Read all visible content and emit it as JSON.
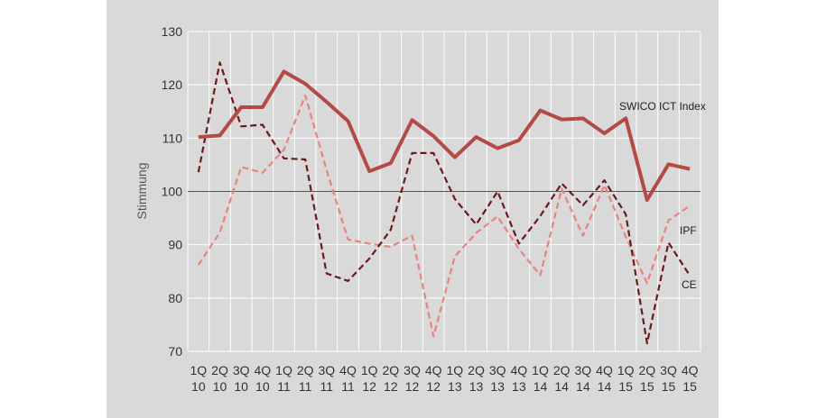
{
  "chart_data": {
    "type": "line",
    "title": "",
    "xlabel": "",
    "ylabel": "Stimmung",
    "ylim": [
      70,
      130
    ],
    "yticks": [
      70,
      80,
      90,
      100,
      110,
      120,
      130
    ],
    "reference_line": 100,
    "categories": [
      "1Q 10",
      "2Q 10",
      "3Q 10",
      "4Q 10",
      "1Q 11",
      "2Q 11",
      "3Q 11",
      "4Q 11",
      "1Q 12",
      "2Q 12",
      "3Q 12",
      "4Q 12",
      "1Q 13",
      "2Q 13",
      "3Q 13",
      "4Q 13",
      "1Q 14",
      "2Q 14",
      "3Q 14",
      "4Q 14",
      "1Q 15",
      "2Q 15",
      "3Q 15",
      "4Q 15"
    ],
    "category_lines": [
      [
        "1Q",
        "10"
      ],
      [
        "2Q",
        "10"
      ],
      [
        "3Q",
        "10"
      ],
      [
        "4Q",
        "10"
      ],
      [
        "1Q",
        "11"
      ],
      [
        "2Q",
        "11"
      ],
      [
        "3Q",
        "11"
      ],
      [
        "4Q",
        "11"
      ],
      [
        "1Q",
        "12"
      ],
      [
        "2Q",
        "12"
      ],
      [
        "3Q",
        "12"
      ],
      [
        "4Q",
        "12"
      ],
      [
        "1Q",
        "13"
      ],
      [
        "2Q",
        "13"
      ],
      [
        "3Q",
        "13"
      ],
      [
        "4Q",
        "13"
      ],
      [
        "1Q",
        "14"
      ],
      [
        "2Q",
        "14"
      ],
      [
        "3Q",
        "14"
      ],
      [
        "4Q",
        "14"
      ],
      [
        "1Q",
        "15"
      ],
      [
        "2Q",
        "15"
      ],
      [
        "3Q",
        "15"
      ],
      [
        "4Q",
        "15"
      ]
    ],
    "grid": true,
    "series": [
      {
        "name": "SWICO ICT Index",
        "color": "#b34a46",
        "style": "solid",
        "values": [
          110.2,
          110.5,
          115.8,
          115.8,
          122.5,
          120.2,
          116.8,
          113.2,
          103.8,
          105.3,
          113.4,
          110.4,
          106.4,
          110.2,
          108.1,
          109.6,
          115.2,
          113.5,
          113.7,
          110.9,
          113.7,
          98.4,
          105.1,
          104.2
        ]
      },
      {
        "name": "IPF",
        "color": "#e8847e",
        "style": "dashed",
        "values": [
          86.2,
          92.3,
          104.6,
          103.5,
          107.8,
          118.0,
          104.0,
          91.0,
          90.2,
          89.6,
          91.7,
          72.8,
          87.8,
          92.2,
          95.3,
          89.2,
          84.3,
          100.5,
          91.7,
          101.2,
          91.5,
          82.8,
          94.6,
          97.3
        ]
      },
      {
        "name": "CE",
        "color": "#6b1a1a",
        "style": "dashed",
        "values": [
          103.6,
          124.2,
          112.2,
          112.5,
          106.2,
          106.0,
          84.6,
          83.2,
          87.4,
          92.8,
          107.2,
          107.2,
          98.6,
          93.8,
          100.0,
          90.2,
          95.4,
          101.5,
          97.4,
          102.1,
          95.7,
          71.5,
          90.4,
          84.2
        ]
      }
    ]
  }
}
